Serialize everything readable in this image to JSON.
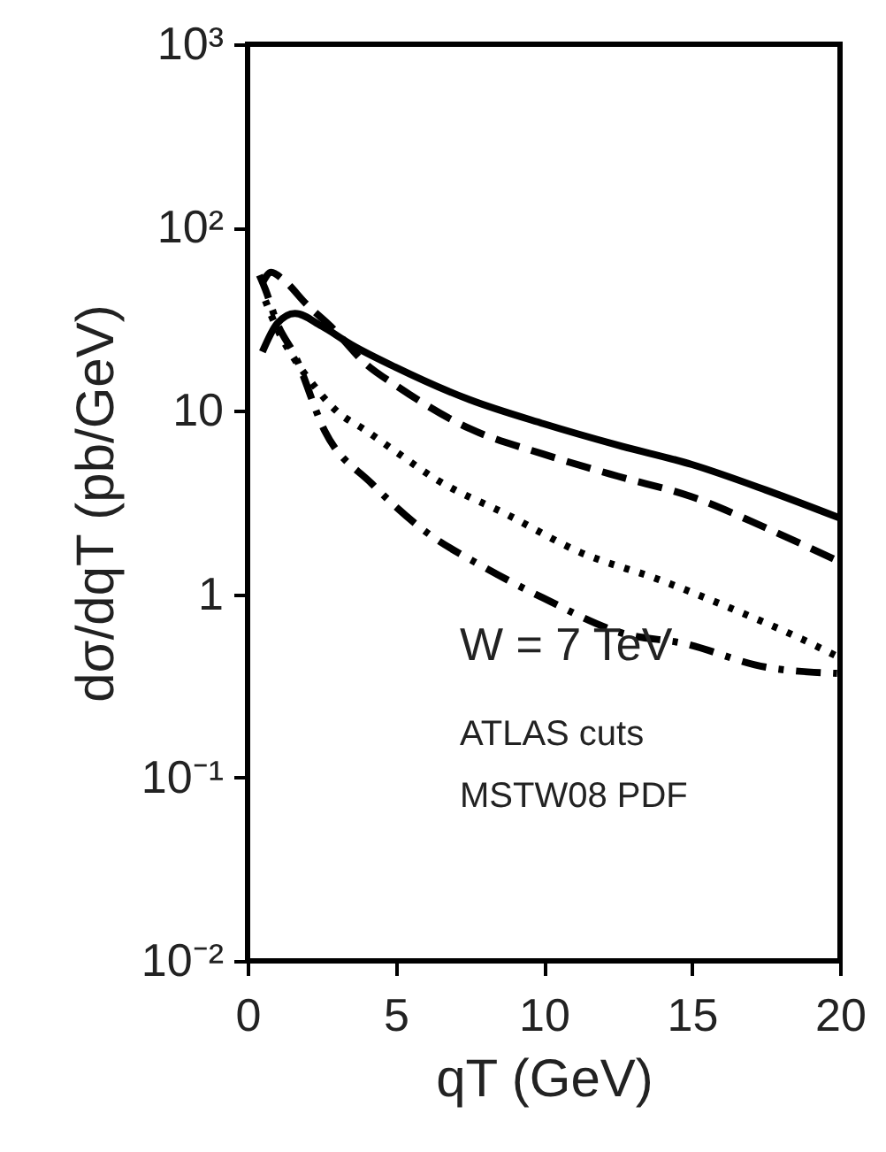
{
  "chart_data": {
    "type": "line",
    "xlabel": "qT (GeV)",
    "ylabel": "dσ/dqT (pb/GeV)",
    "annotations": [
      "W = 7 TeV",
      "ATLAS cuts",
      "MSTW08 PDF"
    ],
    "xlim": [
      0,
      20
    ],
    "xticks": [
      0,
      5,
      10,
      15,
      20
    ],
    "ylim": [
      0.01,
      1000
    ],
    "yticks": [
      {
        "value": 0.01,
        "label": "10⁻²"
      },
      {
        "value": 0.1,
        "label": "10⁻¹"
      },
      {
        "value": 1,
        "label": "1"
      },
      {
        "value": 10,
        "label": "10"
      },
      {
        "value": 100,
        "label": "10²"
      },
      {
        "value": 1000,
        "label": "10³"
      }
    ],
    "log": "y",
    "grid": false,
    "series": [
      {
        "color": "#000000",
        "line_style": "solid",
        "x": [
          0.5,
          1,
          1.6,
          2.5,
          3.5,
          5,
          7.5,
          10,
          12.5,
          15,
          17.5,
          20
        ],
        "values": [
          21,
          30,
          34,
          29,
          23,
          17.3,
          11.5,
          8.5,
          6.5,
          5.1,
          3.7,
          2.6
        ]
      },
      {
        "color": "#000000",
        "line_style": "dashed",
        "x": [
          0.5,
          0.8,
          1.2,
          2,
          2.8,
          4,
          5,
          7.5,
          10,
          12.5,
          15,
          17.5,
          20
        ],
        "values": [
          50,
          57,
          52,
          38,
          29,
          18,
          13.8,
          8,
          5.8,
          4.4,
          3.4,
          2.3,
          1.5
        ]
      },
      {
        "color": "#000000",
        "line_style": "dotted",
        "x": [
          0.6,
          1,
          1.6,
          2.2,
          3,
          4,
          5,
          6.4,
          8.8,
          11.2,
          13.9,
          16.3,
          18.7,
          20
        ],
        "values": [
          40,
          28,
          19,
          14,
          10,
          7.8,
          6,
          4.2,
          2.7,
          1.7,
          1.2,
          0.84,
          0.57,
          0.45
        ]
      },
      {
        "color": "#000000",
        "line_style": "dashdot",
        "x": [
          0.4,
          0.6,
          1,
          1.6,
          2.6,
          4.2,
          6,
          8,
          10,
          12.7,
          14.7,
          17.5,
          19.9
        ],
        "values": [
          55,
          46,
          30,
          20,
          7.8,
          4,
          2.2,
          1.4,
          0.95,
          0.61,
          0.54,
          0.4,
          0.37
        ]
      }
    ]
  }
}
